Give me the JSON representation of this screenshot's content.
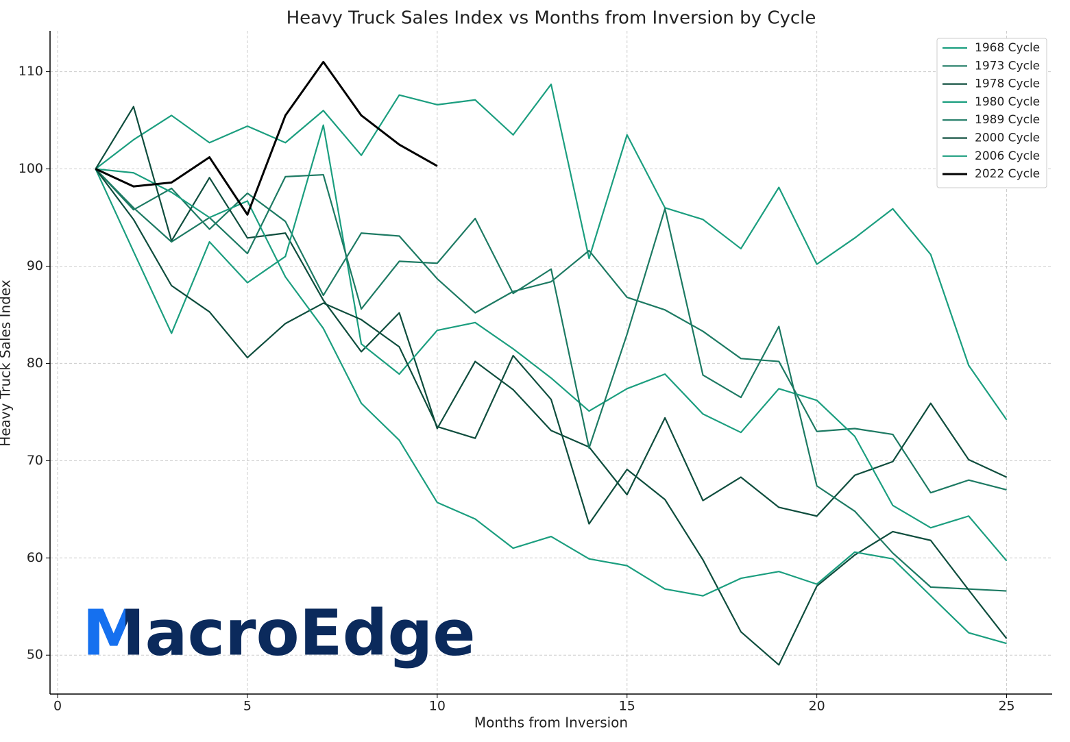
{
  "chart_data": {
    "type": "line",
    "title": "Heavy Truck Sales Index vs Months from Inversion by Cycle",
    "xlabel": "Months from Inversion",
    "ylabel": "Heavy Truck Sales Index",
    "watermark": "MacroEdge",
    "x": [
      1,
      2,
      3,
      4,
      5,
      6,
      7,
      8,
      9,
      10,
      11,
      12,
      13,
      14,
      15,
      16,
      17,
      18,
      19,
      20,
      21,
      22,
      23,
      24,
      25
    ],
    "series": [
      {
        "name": "1968 Cycle",
        "color": "#1b9e7f",
        "values": [
          100,
          103,
          105.5,
          102.7,
          104.4,
          102.7,
          106,
          101.4,
          107.6,
          106.6,
          107.1,
          103.5,
          108.7,
          90.8,
          103.5,
          96,
          94.8,
          91.8,
          98.1,
          90.2,
          92.9,
          95.9,
          91.2,
          79.8,
          74.2
        ]
      },
      {
        "name": "1973 Cycle",
        "color": "#1d7a63",
        "values": [
          100,
          95.8,
          98,
          93.8,
          97.5,
          94.6,
          87,
          93.4,
          93.1,
          88.7,
          85.2,
          87.4,
          88.4,
          91.6,
          86.8,
          85.5,
          83.3,
          80.5,
          80.2,
          73,
          73.3,
          72.7,
          66.7,
          68,
          67
        ]
      },
      {
        "name": "1978 Cycle",
        "color": "#0e4d3d",
        "values": [
          100,
          106.4,
          92.6,
          99.1,
          92.9,
          93.4,
          86.5,
          81.2,
          85.2,
          73.3,
          80.2,
          77.3,
          73.1,
          71.4,
          66.5,
          74.4,
          65.9,
          68.3,
          65.2,
          64.3,
          68.5,
          69.9,
          75.9,
          70.1,
          68.3
        ]
      },
      {
        "name": "1980 Cycle",
        "color": "#1b9e7f",
        "values": [
          100,
          91.5,
          83.1,
          92.5,
          88.3,
          91,
          104.5,
          82,
          78.9,
          83.4,
          84.2,
          81.5,
          78.5,
          75.1,
          77.4,
          78.9,
          74.8,
          72.9,
          77.4,
          76.2,
          72.5,
          65.4,
          63.1,
          64.3,
          59.7
        ]
      },
      {
        "name": "1989 Cycle",
        "color": "#1d7a63",
        "values": [
          100,
          96,
          92.5,
          95,
          91.3,
          99.2,
          99.4,
          85.6,
          90.5,
          90.3,
          94.9,
          87.2,
          89.7,
          71.3,
          83,
          95.9,
          78.8,
          76.5,
          83.8,
          67.4,
          64.8,
          60.5,
          57,
          56.8,
          56.6
        ]
      },
      {
        "name": "2000 Cycle",
        "color": "#0e4d3d",
        "values": [
          100,
          94.8,
          88,
          85.3,
          80.6,
          84.1,
          86.2,
          84.5,
          81.7,
          73.5,
          72.3,
          80.8,
          76.3,
          63.5,
          69.1,
          66,
          59.8,
          52.4,
          49,
          57.1,
          60.3,
          62.7,
          61.8,
          56.7,
          51.7
        ]
      },
      {
        "name": "2006 Cycle",
        "color": "#1b9e7f",
        "values": [
          100,
          99.6,
          97.6,
          95,
          96.7,
          88.9,
          83.6,
          75.9,
          72.1,
          65.7,
          64,
          61,
          62.2,
          59.9,
          59.2,
          56.8,
          56.1,
          57.9,
          58.6,
          57.3,
          60.6,
          59.9,
          56.1,
          52.3,
          51.2
        ]
      },
      {
        "name": "2022 Cycle",
        "color": "#000000",
        "values": [
          100,
          98.2,
          98.6,
          101.2,
          95.3,
          105.5,
          111,
          105.5,
          102.5,
          100.3,
          null,
          null,
          null,
          null,
          null,
          null,
          null,
          null,
          null,
          null,
          null,
          null,
          null,
          null,
          null
        ]
      }
    ],
    "xlim": [
      -0.2,
      26.2
    ],
    "xticks": [
      0,
      5,
      10,
      15,
      20,
      25
    ],
    "ylim": [
      46,
      114.2
    ],
    "yticks": [
      50,
      60,
      70,
      80,
      90,
      100,
      110
    ],
    "grid": true,
    "legend": "upper right"
  }
}
